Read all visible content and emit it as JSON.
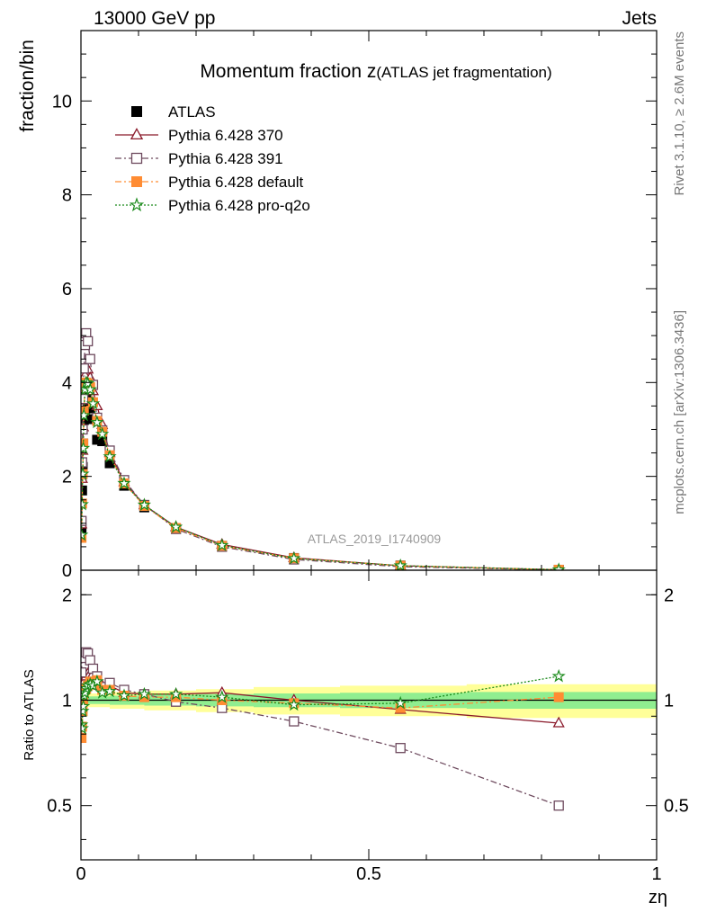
{
  "header": {
    "left": "13000 GeV pp",
    "right": "Jets"
  },
  "side_labels": {
    "rivet": "Rivet 3.1.10, ≥ 2.6M events",
    "mcplots": "mcplots.cern.ch [arXiv:1306.3436]"
  },
  "watermark": "ATLAS_2019_I1740909",
  "colors": {
    "atlas": "#000000",
    "p370": "#8b1a2b",
    "p391": "#6e4a5e",
    "pdefault": "#ff8c33",
    "pq2o": "#1a8a1a",
    "band_inner": "#90ee90",
    "band_outer": "#ffff99"
  },
  "chart_data": [
    {
      "type": "line",
      "title": "Momentum fraction z",
      "title_suffix": "(ATLAS jet fragmentation)",
      "ylabel": "fraction/bin",
      "xlim": [
        0,
        1
      ],
      "ylim": [
        0,
        11.5
      ],
      "yticks": [
        0,
        2,
        4,
        6,
        8,
        10
      ],
      "legend_position": "top-left",
      "x": [
        0.001,
        0.002,
        0.003,
        0.004,
        0.005,
        0.007,
        0.009,
        0.012,
        0.016,
        0.021,
        0.028,
        0.037,
        0.05,
        0.075,
        0.11,
        0.165,
        0.245,
        0.37,
        0.555,
        0.83
      ],
      "series": [
        {
          "name": "ATLAS",
          "key": "atlas",
          "marker": "square-filled",
          "values": [
            0.88,
            1.7,
            2.2,
            2.7,
            3.2,
            3.65,
            3.7,
            3.6,
            3.45,
            3.22,
            2.78,
            2.75,
            2.28,
            1.8,
            1.34,
            0.88,
            0.52,
            0.26,
            0.1,
            0.01
          ]
        },
        {
          "name": "Pythia 6.428 370",
          "key": "p370",
          "marker": "triangle-open",
          "dash": "",
          "values": [
            0.98,
            1.95,
            2.55,
            3.05,
            3.62,
            4.15,
            4.32,
            4.28,
            4.1,
            3.82,
            3.5,
            3.1,
            2.5,
            1.88,
            1.39,
            0.92,
            0.55,
            0.265,
            0.095,
            0.0087
          ]
        },
        {
          "name": "Pythia 6.428 391",
          "key": "p391",
          "marker": "square-open",
          "dash": "7,3,2,3",
          "values": [
            1.05,
            2.3,
            3.0,
            3.65,
            4.3,
            4.8,
            5.05,
            4.88,
            4.5,
            3.95,
            3.25,
            2.98,
            2.55,
            1.92,
            1.39,
            0.88,
            0.5,
            0.23,
            0.074,
            0.005
          ]
        },
        {
          "name": "Pythia 6.428 default",
          "key": "pdefault",
          "marker": "square-filled",
          "dash": "7,3,2,3",
          "values": [
            0.69,
            1.42,
            2.05,
            2.7,
            3.4,
            3.9,
            4.0,
            3.98,
            3.9,
            3.58,
            3.18,
            2.95,
            2.45,
            1.85,
            1.37,
            0.9,
            0.52,
            0.255,
            0.095,
            0.0102
          ]
        },
        {
          "name": "Pythia 6.428 pro-q2o",
          "key": "pq2o",
          "marker": "star-open",
          "dash": "2,2",
          "values": [
            0.75,
            1.4,
            2.05,
            2.6,
            3.3,
            3.85,
            4.0,
            3.98,
            3.85,
            3.55,
            3.15,
            2.9,
            2.42,
            1.85,
            1.39,
            0.92,
            0.53,
            0.252,
            0.097,
            0.0117
          ]
        }
      ]
    },
    {
      "type": "line",
      "ylabel": "Ratio to ATLAS",
      "xlabel": "zη",
      "xlim": [
        0,
        1
      ],
      "ylim": [
        0.35,
        2.35
      ],
      "yticks": [
        0.5,
        1,
        2
      ],
      "xticks": [
        0,
        0.5,
        1
      ],
      "reference_line": 1,
      "band": {
        "x": [
          0.0,
          0.004,
          0.01,
          0.05,
          0.11,
          0.2,
          0.3,
          0.45,
          0.67,
          1.0
        ],
        "inner": [
          0.035,
          0.03,
          0.025,
          0.03,
          0.035,
          0.04,
          0.045,
          0.05,
          0.055,
          0.06
        ],
        "outer": [
          0.06,
          0.05,
          0.045,
          0.055,
          0.065,
          0.075,
          0.09,
          0.1,
          0.11,
          0.12
        ]
      },
      "x": [
        0.001,
        0.002,
        0.003,
        0.004,
        0.005,
        0.007,
        0.009,
        0.012,
        0.016,
        0.021,
        0.028,
        0.037,
        0.05,
        0.075,
        0.11,
        0.165,
        0.245,
        0.37,
        0.555,
        0.83
      ],
      "series": [
        {
          "name": "Pythia 6.428 370",
          "key": "p370",
          "marker": "triangle-open",
          "dash": "",
          "values": [
            1.11,
            1.15,
            1.16,
            1.13,
            1.13,
            1.14,
            1.17,
            1.19,
            1.19,
            1.19,
            1.12,
            1.1,
            1.1,
            1.05,
            1.04,
            1.04,
            1.05,
            1.0,
            0.94,
            0.86
          ]
        },
        {
          "name": "Pythia 6.428 391",
          "key": "p391",
          "marker": "square-open",
          "dash": "7,3,2,3",
          "values": [
            1.2,
            1.35,
            1.36,
            1.35,
            1.35,
            1.32,
            1.37,
            1.36,
            1.3,
            1.23,
            1.17,
            1.09,
            1.12,
            1.07,
            1.04,
            0.99,
            0.95,
            0.87,
            0.73,
            0.5
          ]
        },
        {
          "name": "Pythia 6.428 default",
          "key": "pdefault",
          "marker": "square-filled",
          "dash": "7,3,2,3",
          "values": [
            0.78,
            0.84,
            0.93,
            1.0,
            1.06,
            1.07,
            1.08,
            1.1,
            1.13,
            1.11,
            1.14,
            1.07,
            1.07,
            1.03,
            1.02,
            1.02,
            1.0,
            0.98,
            0.95,
            1.02
          ]
        },
        {
          "name": "Pythia 6.428 pro-q2o",
          "key": "pq2o",
          "marker": "star-open",
          "dash": "2,2",
          "values": [
            0.85,
            0.83,
            0.93,
            0.96,
            1.03,
            1.05,
            1.08,
            1.1,
            1.11,
            1.1,
            1.13,
            1.05,
            1.06,
            1.03,
            1.04,
            1.04,
            1.02,
            0.97,
            0.98,
            1.17
          ]
        }
      ]
    }
  ]
}
